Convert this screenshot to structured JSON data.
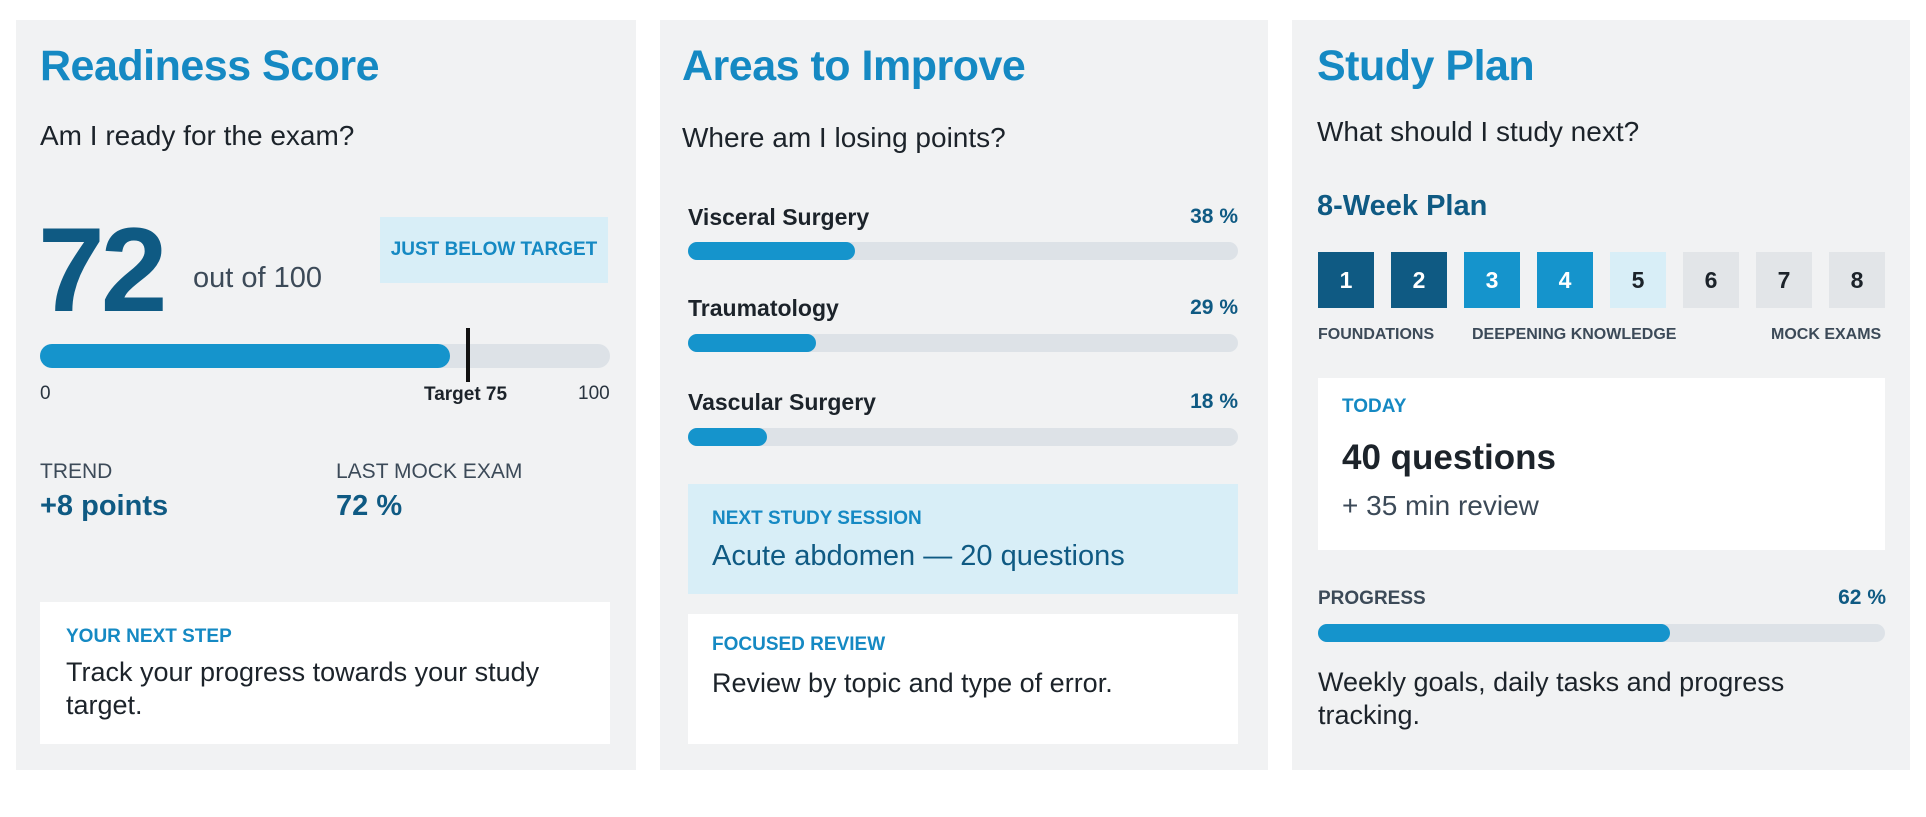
{
  "readiness": {
    "title": "Readiness Score",
    "question": "Am I ready for the exam?",
    "score": "72",
    "out_of": "out of 100",
    "badge": "JUST BELOW TARGET",
    "bar": {
      "value": 72,
      "target": 75,
      "max": 100
    },
    "scale_min": "0",
    "target_label": "Target 75",
    "scale_max": "100",
    "trend_label": "TREND",
    "trend_value": "+8 points",
    "last_mock_label": "LAST MOCK EXAM",
    "last_mock_value": "72 %",
    "next_step_head": "YOUR NEXT STEP",
    "next_step_text": "Track your progress towards your study target."
  },
  "areas": {
    "title": "Areas to Improve",
    "question": "Where am I losing points?",
    "topics": [
      {
        "name": "Visceral Surgery",
        "pct_label": "38 %",
        "value": 38
      },
      {
        "name": "Traumatology",
        "pct_label": "29 %",
        "value": 29
      },
      {
        "name": "Vascular Surgery",
        "pct_label": "18 %",
        "value": 18
      }
    ],
    "session_head": "NEXT STUDY SESSION",
    "session_text": "Acute abdomen — 20 questions",
    "review_head": "FOCUSED REVIEW",
    "review_text": "Review by topic and type of error."
  },
  "plan": {
    "title": "Study Plan",
    "question": "What should I study next?",
    "plan_title": "8-Week Plan",
    "weeks": [
      {
        "label": "1",
        "state": "done"
      },
      {
        "label": "2",
        "state": "done"
      },
      {
        "label": "3",
        "state": "current"
      },
      {
        "label": "4",
        "state": "current"
      },
      {
        "label": "5",
        "state": "upcoming-light"
      },
      {
        "label": "6",
        "state": "upcoming"
      },
      {
        "label": "7",
        "state": "upcoming"
      },
      {
        "label": "8",
        "state": "upcoming"
      }
    ],
    "phases": [
      "FOUNDATIONS",
      "DEEPENING KNOWLEDGE",
      "MOCK EXAMS"
    ],
    "today_head": "TODAY",
    "today_main": "40 questions",
    "today_sub": "+ 35 min review",
    "progress_label": "PROGRESS",
    "progress_pct": "62 %",
    "progress_value": 62,
    "weekly_text": "Weekly goals, daily tasks and progress tracking."
  },
  "colors": {
    "accent": "#1589c3",
    "dark": "#0f5a83",
    "fill": "#1594cc",
    "track": "#dde2e7",
    "week_done": "#0f5a83",
    "week_current": "#1594cc",
    "week_light": "#d8eef7",
    "week_upcoming": "#e2e5e8"
  }
}
